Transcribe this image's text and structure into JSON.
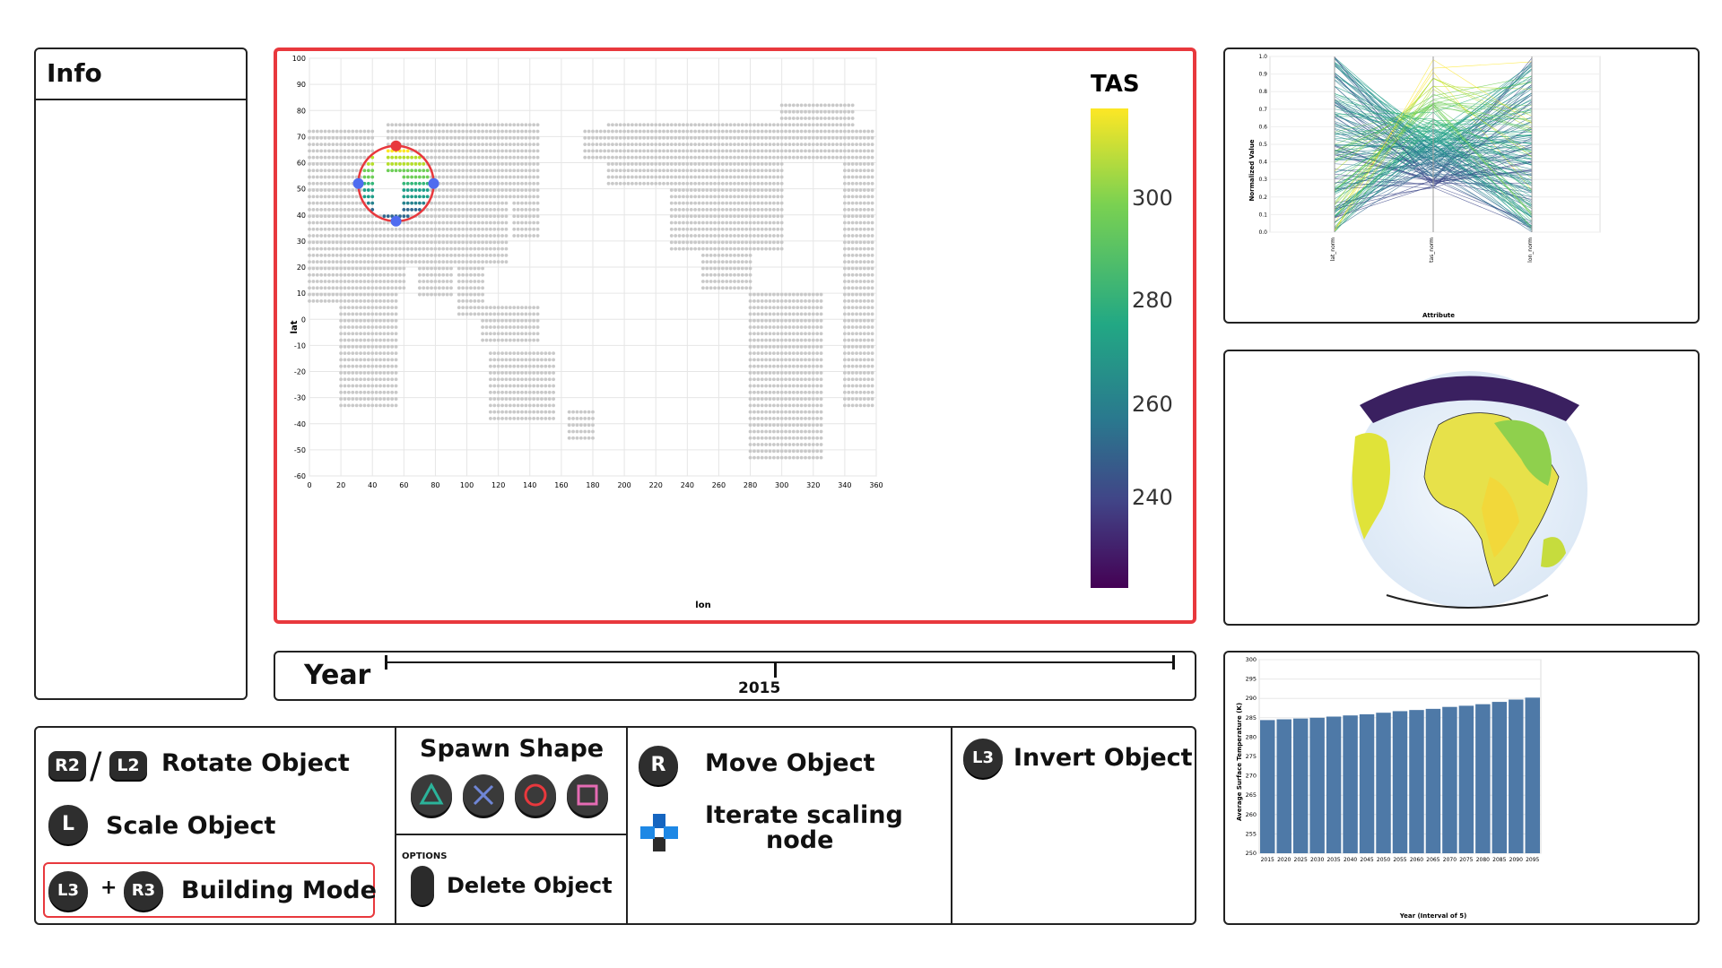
{
  "info": {
    "title": "Info"
  },
  "map": {
    "colorbar_title": "TAS",
    "colorbar_ticks": [
      "300",
      "280",
      "260",
      "240"
    ],
    "colors": [
      "#fde725",
      "#7ad151",
      "#22a884",
      "#2a788e",
      "#414487",
      "#440154"
    ],
    "selection_color": "#e8383d",
    "handle_color": "#4f6cf0",
    "xlabel": "lon",
    "ylabel": "lat",
    "xticks": [
      "0",
      "20",
      "40",
      "60",
      "80",
      "100",
      "120",
      "140",
      "160",
      "180",
      "200",
      "220",
      "240",
      "260",
      "280",
      "300",
      "320",
      "340",
      "360"
    ],
    "yticks": [
      "100",
      "90",
      "80",
      "70",
      "60",
      "50",
      "40",
      "30",
      "20",
      "10",
      "0",
      "-10",
      "-20",
      "-30",
      "-40",
      "-50",
      "-60"
    ]
  },
  "year": {
    "label": "Year",
    "value": "2015"
  },
  "controls": {
    "rotate": {
      "buttons": [
        "R2",
        "L2"
      ],
      "separator": "/",
      "label": "Rotate Object"
    },
    "scale": {
      "button": "L",
      "label": "Scale Object"
    },
    "building": {
      "buttons": [
        "L3",
        "R3"
      ],
      "plus": "+",
      "label": "Building Mode"
    },
    "spawn": {
      "label": "Spawn Shape",
      "shapes": [
        "triangle-icon",
        "cross-icon",
        "circle-icon",
        "square-icon"
      ]
    },
    "delete": {
      "options_label": "OPTIONS",
      "label": "Delete Object"
    },
    "move": {
      "button": "R",
      "label": "Move Object"
    },
    "iterate": {
      "label_line1": "Iterate scaling",
      "label_line2": "node",
      "icon": "dpad-icon"
    },
    "invert": {
      "button": "L3",
      "label": "Invert Object"
    }
  },
  "parallel_coords": {
    "ylabel": "Normalized Value",
    "xlabel": "Attribute",
    "axes": [
      "lat_norm",
      "tas_norm",
      "lon_norm"
    ],
    "yticks": [
      "1.0",
      "0.9",
      "0.8",
      "0.7",
      "0.6",
      "0.5",
      "0.4",
      "0.3",
      "0.2",
      "0.1",
      "0.0"
    ]
  },
  "globe": {
    "icon": "globe-temperature-icon"
  },
  "chart_data": {
    "type": "bar",
    "xlabel": "Year (Interval of 5)",
    "ylabel": "Average Surface Temperature (K)",
    "ylim": [
      250,
      300
    ],
    "yticks": [
      "300",
      "295",
      "290",
      "285",
      "280",
      "275",
      "270",
      "265",
      "260",
      "255",
      "250"
    ],
    "categories": [
      "2015",
      "2020",
      "2025",
      "2030",
      "2035",
      "2040",
      "2045",
      "2050",
      "2055",
      "2060",
      "2065",
      "2070",
      "2075",
      "2080",
      "2085",
      "2090",
      "2095"
    ],
    "values": [
      284.4,
      284.6,
      284.8,
      285.0,
      285.3,
      285.6,
      285.9,
      286.3,
      286.7,
      287.0,
      287.3,
      287.8,
      288.1,
      288.5,
      289.1,
      289.7,
      290.2
    ],
    "bar_color": "#4e79a7",
    "grid": true
  }
}
